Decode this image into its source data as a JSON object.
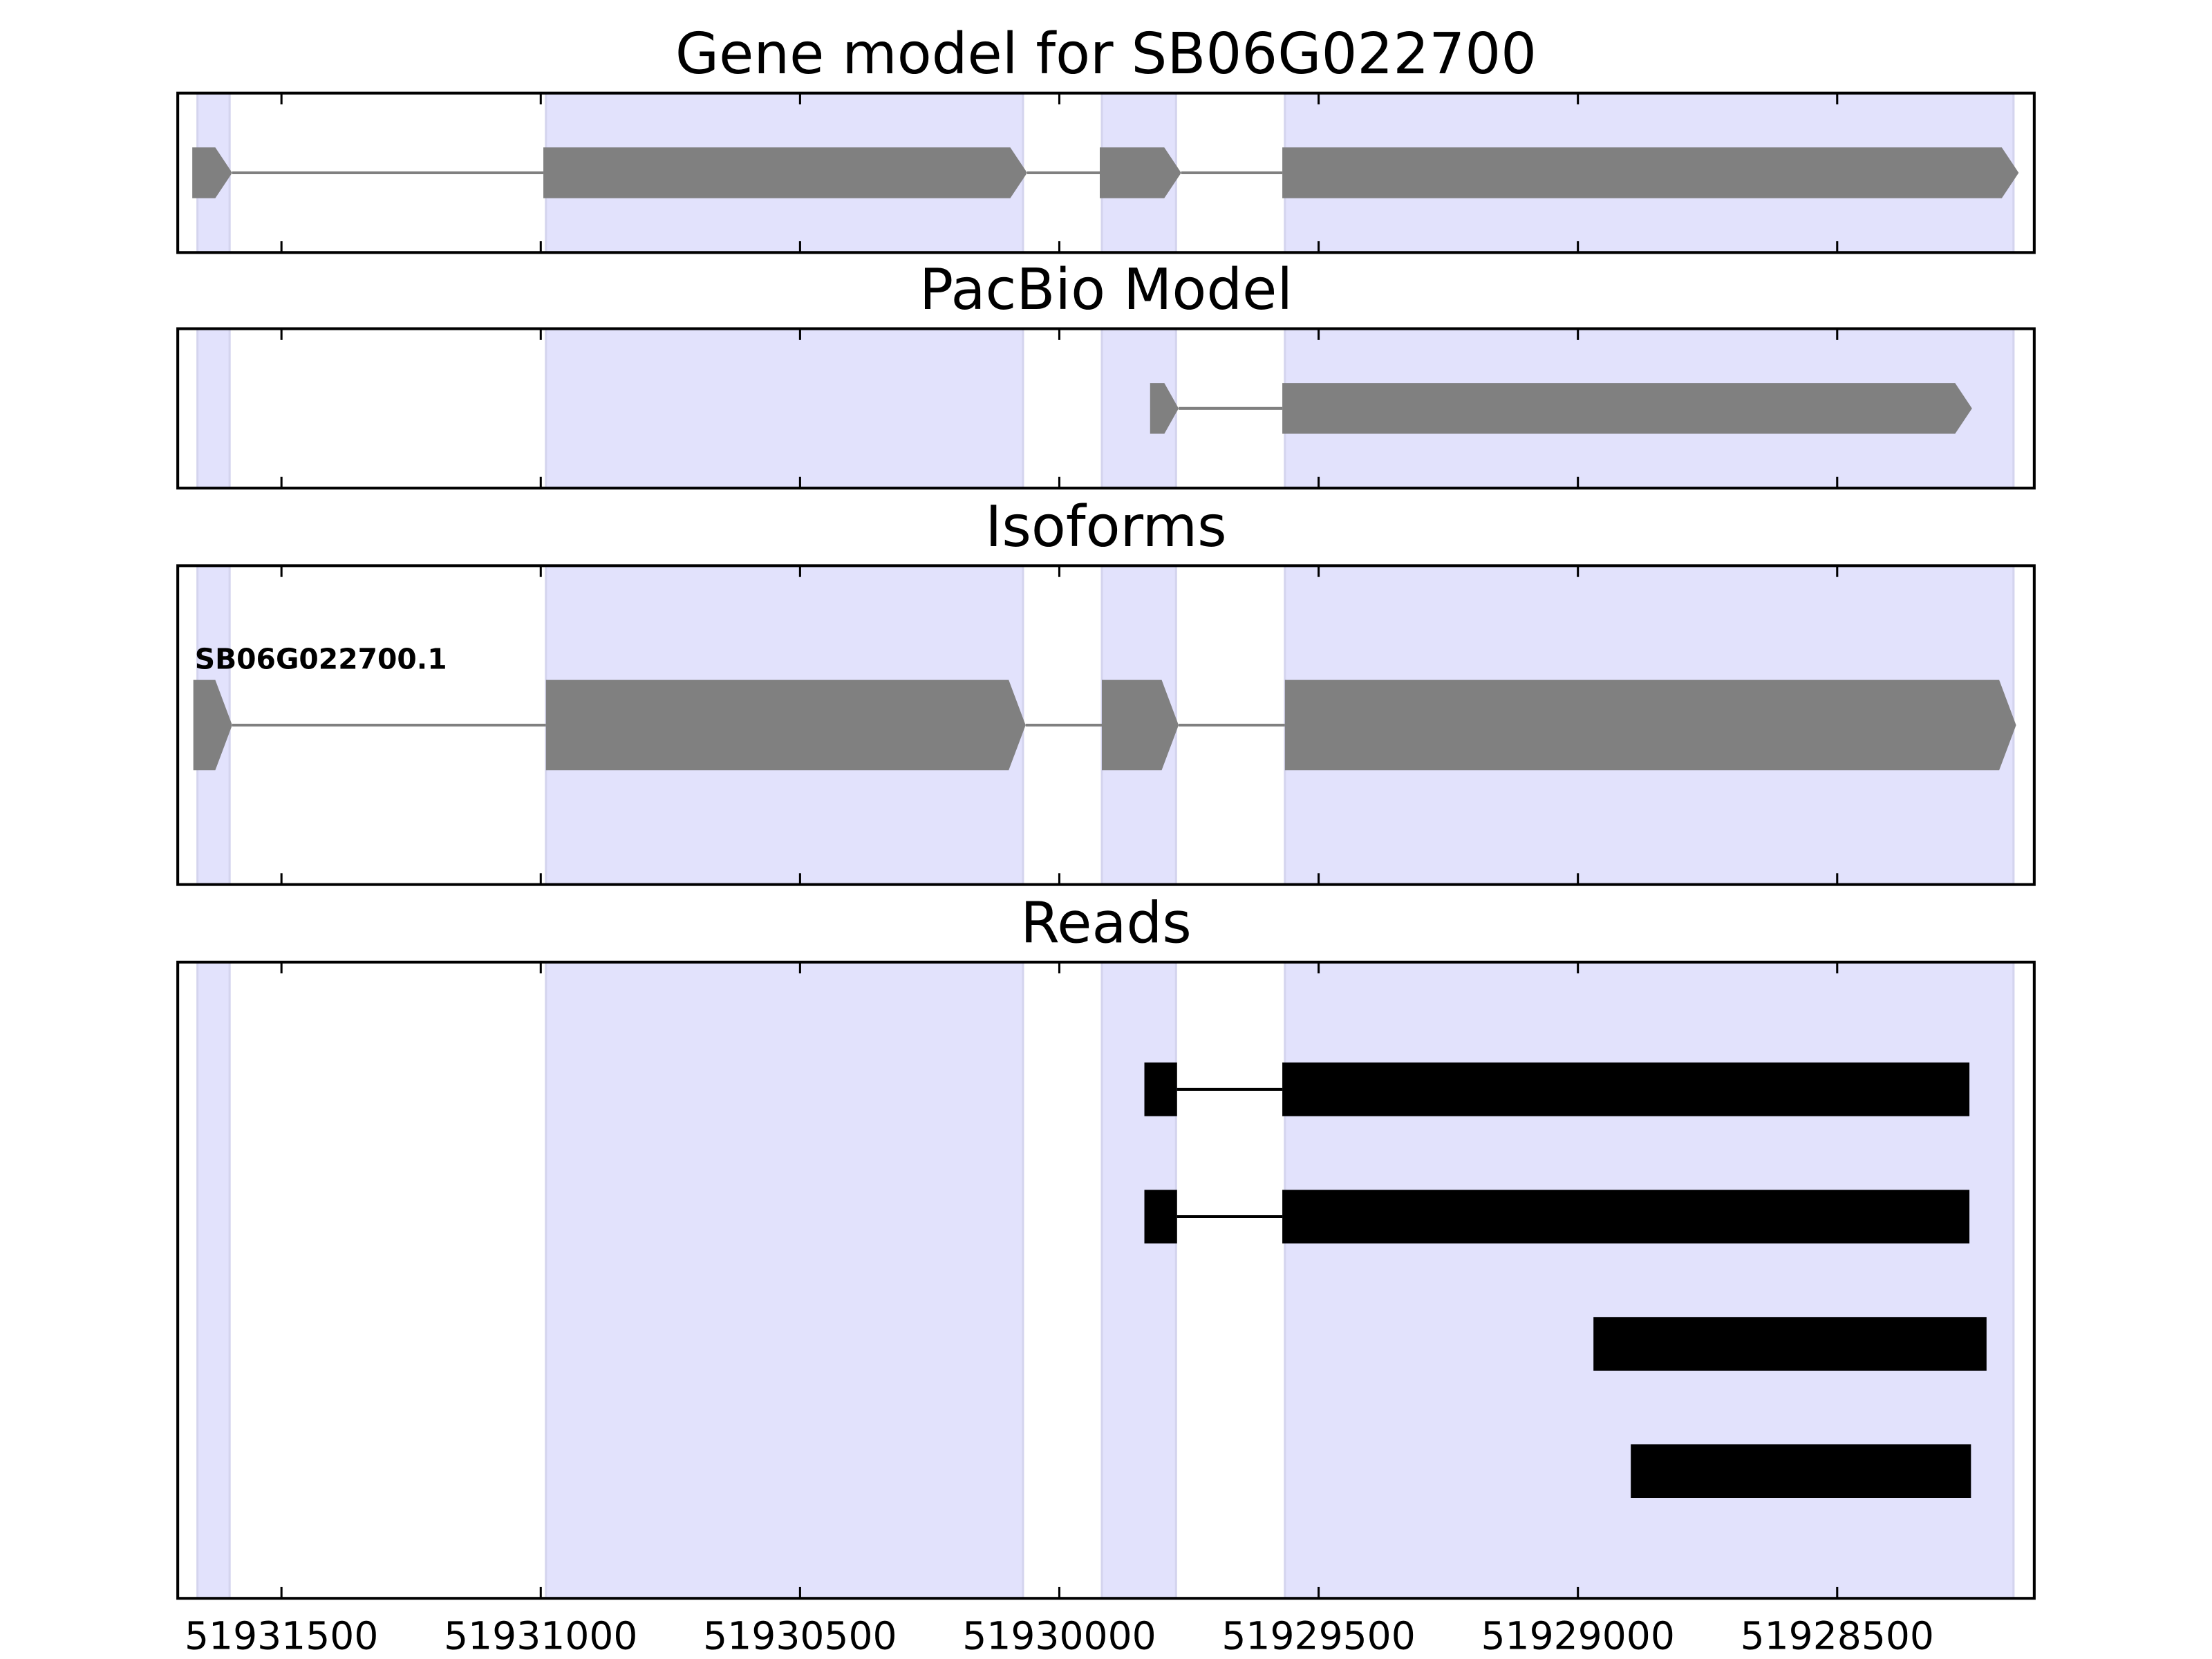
{
  "shaded_regions": [
    [
      51931662,
      51931600
    ],
    [
      51930990,
      51930070
    ],
    [
      51929918,
      51929775
    ],
    [
      51929565,
      51928160
    ]
  ],
  "shade_color": "#e2e2fc",
  "chart_data": [
    {
      "type": "gene-track",
      "title": "Gene model for SB06G022700",
      "xlim": [
        51931700,
        51928120
      ],
      "xticks": [
        51931500,
        51931000,
        51930500,
        51930000,
        51929500,
        51929000,
        51928500
      ],
      "arrows": true,
      "color": "#808080",
      "series": [
        {
          "exons": [
            [
              51931672,
              51931595
            ],
            [
              51930995,
              51930062
            ],
            [
              51929922,
              51929765
            ],
            [
              51929570,
              51928150
            ]
          ]
        }
      ]
    },
    {
      "type": "gene-track",
      "title": "PacBio Model",
      "xlim": [
        51931700,
        51928120
      ],
      "xticks": [
        51931500,
        51931000,
        51930500,
        51930000,
        51929500,
        51929000,
        51928500
      ],
      "arrows": true,
      "color": "#808080",
      "series": [
        {
          "exons": [
            [
              51929825,
              51929770
            ],
            [
              51929570,
              51928240
            ]
          ]
        }
      ]
    },
    {
      "type": "gene-track",
      "title": "Isoforms",
      "xlim": [
        51931700,
        51928120
      ],
      "xticks": [
        51931500,
        51931000,
        51930500,
        51930000,
        51929500,
        51929000,
        51928500
      ],
      "arrows": true,
      "color": "#808080",
      "series": [
        {
          "name": "SB06G022700.1",
          "exons": [
            [
              51931670,
              51931595
            ],
            [
              51930990,
              51930065
            ],
            [
              51929918,
              51929770
            ],
            [
              51929565,
              51928155
            ]
          ]
        }
      ]
    },
    {
      "type": "gene-track",
      "title": "Reads",
      "xlim": [
        51931700,
        51928120
      ],
      "xticks": [
        51931500,
        51931000,
        51930500,
        51930000,
        51929500,
        51929000,
        51928500
      ],
      "arrows": false,
      "color": "#000000",
      "tick_labels": true,
      "series": [
        {
          "exons": [
            [
              51929836,
              51929773
            ],
            [
              51929570,
              51928245
            ]
          ]
        },
        {
          "exons": [
            [
              51929836,
              51929773
            ],
            [
              51929570,
              51928245
            ]
          ]
        },
        {
          "exons": [
            [
              51928970,
              51928212
            ]
          ]
        },
        {
          "exons": [
            [
              51928898,
              51928242
            ]
          ]
        }
      ]
    }
  ]
}
